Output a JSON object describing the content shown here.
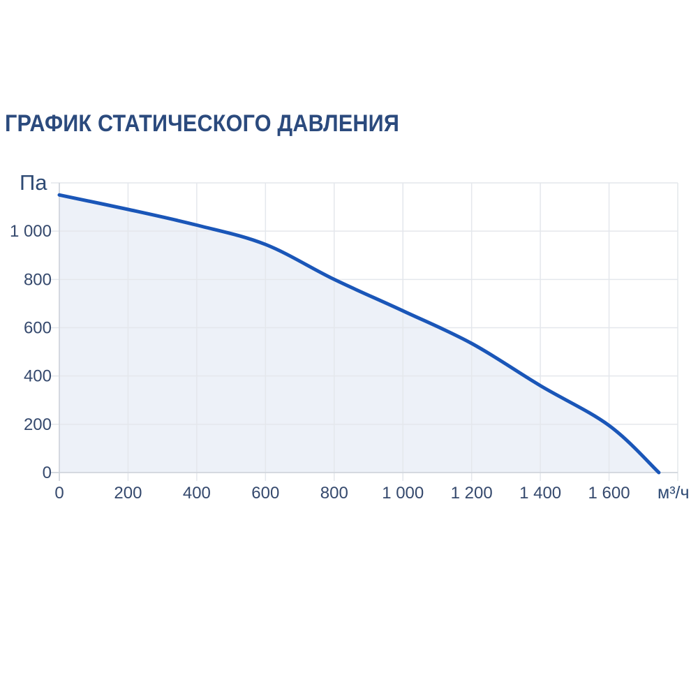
{
  "title": "ГРАФИК СТАТИЧЕСКОГО ДАВЛЕНИЯ",
  "colors": {
    "title_text": "#2b4a7d",
    "tick_text": "#35496d",
    "curve_line": "#1a56b8",
    "area_fill": "#edf1f8",
    "gridline": "#e4e7ec",
    "axis_line": "#cdd2d9",
    "background": "#ffffff"
  },
  "chart_data": {
    "type": "area",
    "title": "ГРАФИК СТАТИЧЕСКОГО ДАВЛЕНИЯ",
    "y_unit": "Па",
    "x_unit": "м³/ч",
    "xlim": [
      0,
      1800
    ],
    "ylim": [
      0,
      1200
    ],
    "grid": true,
    "legend": false,
    "x_ticks": [
      0,
      200,
      400,
      600,
      800,
      1000,
      1200,
      1400,
      1600
    ],
    "x_tick_labels": [
      "0",
      "200",
      "400",
      "600",
      "800",
      "1 000",
      "1 200",
      "1 400",
      "1 600"
    ],
    "y_ticks": [
      0,
      200,
      400,
      600,
      800,
      1000
    ],
    "y_tick_labels": [
      "0",
      "200",
      "400",
      "600",
      "800",
      "1 000"
    ],
    "series": [
      {
        "points": [
          [
            0,
            1150
          ],
          [
            200,
            1090
          ],
          [
            400,
            1025
          ],
          [
            600,
            945
          ],
          [
            800,
            800
          ],
          [
            1000,
            670
          ],
          [
            1200,
            535
          ],
          [
            1400,
            360
          ],
          [
            1600,
            195
          ],
          [
            1745,
            0
          ]
        ]
      }
    ]
  }
}
